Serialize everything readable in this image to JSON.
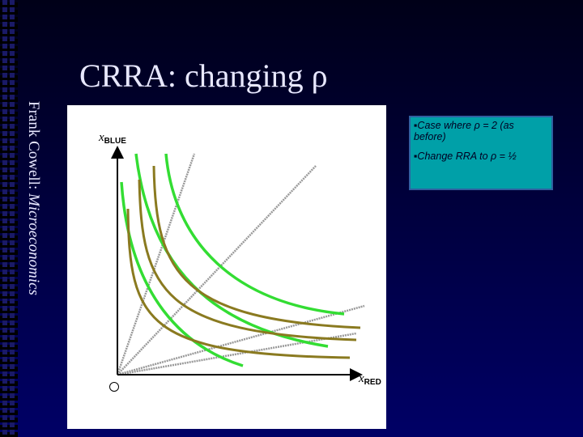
{
  "title": "CRRA: changing ρ",
  "sidebar": {
    "author": "Frank Cowell: ",
    "book": "Microeconomics"
  },
  "axes": {
    "y": {
      "var": "x",
      "sub": "BLUE"
    },
    "x": {
      "var": "x",
      "sub": "RED"
    }
  },
  "notes": [
    "▪Case where ρ = 2 (as before)",
    "▪Change RRA to ρ = ½"
  ]
}
